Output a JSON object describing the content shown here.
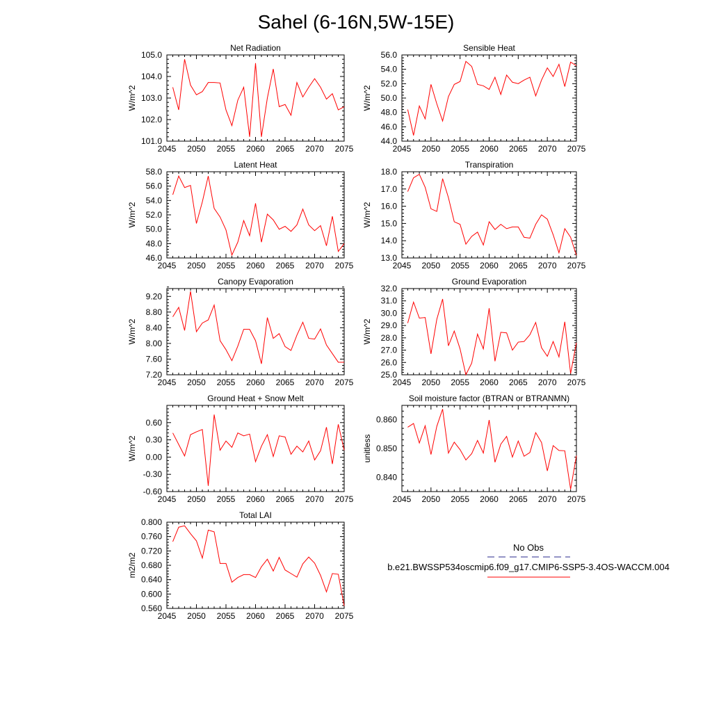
{
  "title": "Sahel (6-16N,5W-15E)",
  "legend": {
    "entries": [
      {
        "label": "No Obs",
        "color": "#2a2a8c",
        "dash": true
      },
      {
        "label": "b.e21.BWSSP534oscmip6.f09_g17.CMIP6-SSP5-3.4OS-WACCM.004",
        "color": "#ff0000",
        "dash": false
      }
    ]
  },
  "chart_data": [
    {
      "type": "line",
      "title": "Net Radiation",
      "ylabel": "W/m^2",
      "xlim": [
        2045,
        2075
      ],
      "ylim": [
        101.0,
        105.0
      ],
      "yticks": [
        101.0,
        102.0,
        103.0,
        104.0,
        105.0
      ],
      "ytick_labels": [
        "101.0",
        "102.0",
        "103.0",
        "104.0",
        "105.0"
      ],
      "xticks": [
        2045,
        2050,
        2055,
        2060,
        2065,
        2070,
        2075
      ],
      "xtick_labels": [
        "2045",
        "2050",
        "2055",
        "2060",
        "2065",
        "2070",
        "2075"
      ],
      "x_start": 2046,
      "values": [
        103.5,
        102.45,
        104.8,
        103.6,
        103.15,
        103.3,
        103.72,
        103.72,
        103.7,
        102.45,
        101.72,
        102.9,
        103.5,
        101.2,
        104.62,
        101.2,
        103.0,
        104.35,
        102.6,
        102.7,
        102.2,
        103.72,
        103.05,
        103.5,
        103.9,
        103.5,
        102.95,
        103.2,
        102.45,
        102.6
      ]
    },
    {
      "type": "line",
      "title": "Sensible Heat",
      "ylabel": "W/m^2",
      "xlim": [
        2045,
        2075
      ],
      "ylim": [
        44.0,
        56.0
      ],
      "yticks": [
        44.0,
        46.0,
        48.0,
        50.0,
        52.0,
        54.0,
        56.0
      ],
      "ytick_labels": [
        "44.0",
        "46.0",
        "48.0",
        "50.0",
        "52.0",
        "54.0",
        "56.0"
      ],
      "xticks": [
        2045,
        2050,
        2055,
        2060,
        2065,
        2070,
        2075
      ],
      "xtick_labels": [
        "2045",
        "2050",
        "2055",
        "2060",
        "2065",
        "2070",
        "2075"
      ],
      "x_start": 2046,
      "values": [
        48.4,
        44.8,
        48.9,
        47.1,
        51.9,
        49.2,
        46.8,
        50.2,
        51.9,
        52.3,
        55.1,
        54.4,
        51.9,
        51.7,
        51.2,
        52.9,
        50.5,
        53.2,
        52.2,
        52.0,
        52.5,
        52.9,
        50.3,
        52.5,
        54.2,
        53.0,
        54.7,
        51.6,
        55.0,
        54.5
      ]
    },
    {
      "type": "line",
      "title": "Latent Heat",
      "ylabel": "W/m^2",
      "xlim": [
        2045,
        2075
      ],
      "ylim": [
        46.0,
        58.0
      ],
      "yticks": [
        46.0,
        48.0,
        50.0,
        52.0,
        54.0,
        56.0,
        58.0
      ],
      "ytick_labels": [
        "46.0",
        "48.0",
        "50.0",
        "52.0",
        "54.0",
        "56.0",
        "58.0"
      ],
      "xticks": [
        2045,
        2050,
        2055,
        2060,
        2065,
        2070,
        2075
      ],
      "xtick_labels": [
        "2045",
        "2050",
        "2055",
        "2060",
        "2065",
        "2070",
        "2075"
      ],
      "x_start": 2046,
      "values": [
        54.8,
        57.4,
        55.8,
        56.1,
        50.8,
        53.8,
        57.4,
        52.9,
        51.7,
        49.9,
        46.4,
        48.2,
        51.2,
        49.1,
        53.6,
        48.2,
        52.1,
        51.3,
        50.0,
        50.4,
        49.7,
        50.6,
        52.8,
        50.6,
        49.8,
        50.5,
        47.7,
        51.8,
        46.9,
        48.0
      ]
    },
    {
      "type": "line",
      "title": "Transpiration",
      "ylabel": "W/m^2",
      "xlim": [
        2045,
        2075
      ],
      "ylim": [
        13.0,
        18.0
      ],
      "yticks": [
        13.0,
        14.0,
        15.0,
        16.0,
        17.0,
        18.0
      ],
      "ytick_labels": [
        "13.0",
        "14.0",
        "15.0",
        "16.0",
        "17.0",
        "18.0"
      ],
      "xticks": [
        2045,
        2050,
        2055,
        2060,
        2065,
        2070,
        2075
      ],
      "xtick_labels": [
        "2045",
        "2050",
        "2055",
        "2060",
        "2065",
        "2070",
        "2075"
      ],
      "x_start": 2046,
      "values": [
        16.85,
        17.65,
        17.85,
        17.1,
        15.85,
        15.7,
        17.6,
        16.5,
        15.1,
        14.95,
        13.8,
        14.25,
        14.5,
        13.75,
        15.1,
        14.65,
        14.95,
        14.7,
        14.8,
        14.8,
        14.2,
        14.15,
        14.95,
        15.5,
        15.25,
        14.35,
        13.3,
        14.7,
        14.2,
        13.15
      ]
    },
    {
      "type": "line",
      "title": "Canopy Evaporation",
      "ylabel": "W/m^2",
      "xlim": [
        2045,
        2075
      ],
      "ylim": [
        7.2,
        9.4
      ],
      "yticks": [
        7.2,
        7.6,
        8.0,
        8.4,
        8.8,
        9.2
      ],
      "ytick_labels": [
        "7.20",
        "7.60",
        "8.00",
        "8.40",
        "8.80",
        "9.20"
      ],
      "xticks": [
        2045,
        2050,
        2055,
        2060,
        2065,
        2070,
        2075
      ],
      "xtick_labels": [
        "2045",
        "2050",
        "2055",
        "2060",
        "2065",
        "2070",
        "2075"
      ],
      "x_start": 2046,
      "values": [
        8.68,
        8.92,
        8.33,
        9.33,
        8.3,
        8.52,
        8.6,
        8.98,
        8.07,
        7.84,
        7.56,
        7.93,
        8.36,
        8.36,
        8.07,
        7.48,
        8.66,
        8.13,
        8.25,
        7.92,
        7.82,
        8.21,
        8.54,
        8.13,
        8.11,
        8.37,
        7.96,
        7.74,
        7.52,
        7.52
      ]
    },
    {
      "type": "line",
      "title": "Ground Evaporation",
      "ylabel": "W/m^2",
      "xlim": [
        2045,
        2075
      ],
      "ylim": [
        25.0,
        32.0
      ],
      "yticks": [
        25.0,
        26.0,
        27.0,
        28.0,
        29.0,
        30.0,
        31.0,
        32.0
      ],
      "ytick_labels": [
        "25.0",
        "26.0",
        "27.0",
        "28.0",
        "29.0",
        "30.0",
        "31.0",
        "32.0"
      ],
      "xticks": [
        2045,
        2050,
        2055,
        2060,
        2065,
        2070,
        2075
      ],
      "xtick_labels": [
        "2045",
        "2050",
        "2055",
        "2060",
        "2065",
        "2070",
        "2075"
      ],
      "x_start": 2046,
      "values": [
        29.2,
        30.9,
        29.6,
        29.65,
        26.7,
        29.5,
        31.15,
        27.35,
        28.55,
        27.1,
        25.0,
        25.95,
        28.3,
        27.1,
        30.4,
        26.1,
        28.45,
        28.4,
        27.0,
        27.65,
        27.7,
        28.25,
        29.25,
        27.2,
        26.5,
        27.7,
        26.45,
        29.3,
        25.1,
        27.6
      ]
    },
    {
      "type": "line",
      "title": "Ground Heat + Snow Melt",
      "ylabel": "W/m^2",
      "xlim": [
        2045,
        2075
      ],
      "ylim": [
        -0.6,
        0.9
      ],
      "yticks": [
        -0.6,
        -0.3,
        0.0,
        0.3,
        0.6
      ],
      "ytick_labels": [
        "-0.60",
        "-0.30",
        "0.00",
        "0.30",
        "0.60"
      ],
      "xticks": [
        2045,
        2050,
        2055,
        2060,
        2065,
        2070,
        2075
      ],
      "xtick_labels": [
        "2045",
        "2050",
        "2055",
        "2060",
        "2065",
        "2070",
        "2075"
      ],
      "x_start": 2046,
      "values": [
        0.42,
        0.22,
        0.02,
        0.39,
        0.44,
        0.48,
        -0.5,
        0.74,
        0.12,
        0.28,
        0.17,
        0.42,
        0.37,
        0.4,
        -0.08,
        0.19,
        0.39,
        0.01,
        0.37,
        0.35,
        0.05,
        0.19,
        0.09,
        0.28,
        -0.05,
        0.11,
        0.52,
        -0.12,
        0.57,
        0.12
      ]
    },
    {
      "type": "line",
      "title": "Soil moisture factor (BTRAN or BTRANMN)",
      "ylabel": "unitless",
      "xlim": [
        2045,
        2075
      ],
      "ylim": [
        0.835,
        0.865
      ],
      "yticks": [
        0.84,
        0.85,
        0.86
      ],
      "ytick_labels": [
        "0.840",
        "0.850",
        "0.860"
      ],
      "xticks": [
        2045,
        2050,
        2055,
        2060,
        2065,
        2070,
        2075
      ],
      "xtick_labels": [
        "2045",
        "2050",
        "2055",
        "2060",
        "2065",
        "2070",
        "2075"
      ],
      "x_start": 2046,
      "values": [
        0.8574,
        0.8587,
        0.8519,
        0.8579,
        0.8479,
        0.8577,
        0.8637,
        0.8484,
        0.8522,
        0.8496,
        0.846,
        0.8482,
        0.8528,
        0.8484,
        0.8599,
        0.8452,
        0.8515,
        0.8542,
        0.847,
        0.8526,
        0.8473,
        0.8486,
        0.8555,
        0.8521,
        0.8422,
        0.851,
        0.8493,
        0.8492,
        0.8358,
        0.8475
      ]
    },
    {
      "type": "line",
      "title": "Total LAI",
      "ylabel": "m2/m2",
      "xlim": [
        2045,
        2075
      ],
      "ylim": [
        0.56,
        0.8
      ],
      "yticks": [
        0.56,
        0.6,
        0.64,
        0.68,
        0.72,
        0.76,
        0.8
      ],
      "ytick_labels": [
        "0.560",
        "0.600",
        "0.640",
        "0.680",
        "0.720",
        "0.760",
        "0.800"
      ],
      "xticks": [
        2045,
        2050,
        2055,
        2060,
        2065,
        2070,
        2075
      ],
      "xtick_labels": [
        "2045",
        "2050",
        "2055",
        "2060",
        "2065",
        "2070",
        "2075"
      ],
      "x_start": 2046,
      "values": [
        0.746,
        0.786,
        0.79,
        0.768,
        0.748,
        0.7,
        0.778,
        0.773,
        0.685,
        0.685,
        0.633,
        0.646,
        0.654,
        0.654,
        0.646,
        0.676,
        0.697,
        0.664,
        0.702,
        0.667,
        0.657,
        0.647,
        0.684,
        0.703,
        0.686,
        0.652,
        0.606,
        0.657,
        0.655,
        0.567
      ]
    }
  ]
}
